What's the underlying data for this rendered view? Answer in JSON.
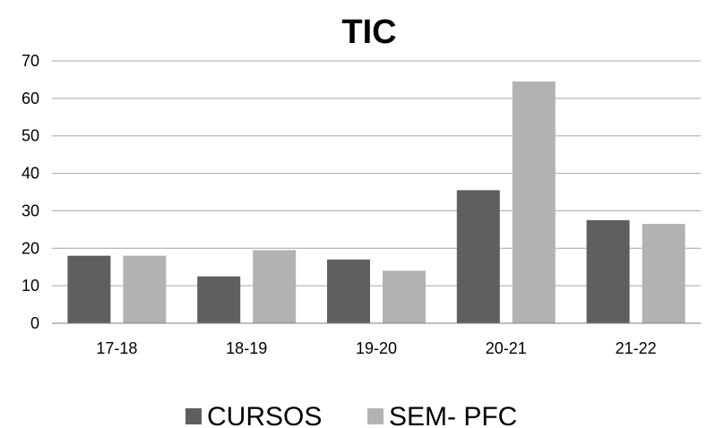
{
  "chart_data": {
    "type": "bar",
    "title": "TIC",
    "xlabel": "",
    "ylabel": "",
    "categories": [
      "17-18",
      "18-19",
      "19-20",
      "20-21",
      "21-22"
    ],
    "series": [
      {
        "name": "CURSOS",
        "color": "#5f5f5f",
        "values": [
          18,
          12.5,
          17,
          35.5,
          27.5
        ]
      },
      {
        "name": "SEM- PFC",
        "color": "#b2b2b2",
        "values": [
          18,
          19.5,
          14,
          64.5,
          26.5
        ]
      }
    ],
    "ylim": [
      0,
      70
    ],
    "yticks": [
      0,
      10,
      20,
      30,
      40,
      50,
      60,
      70
    ],
    "grid": true,
    "legend": "bottom"
  }
}
